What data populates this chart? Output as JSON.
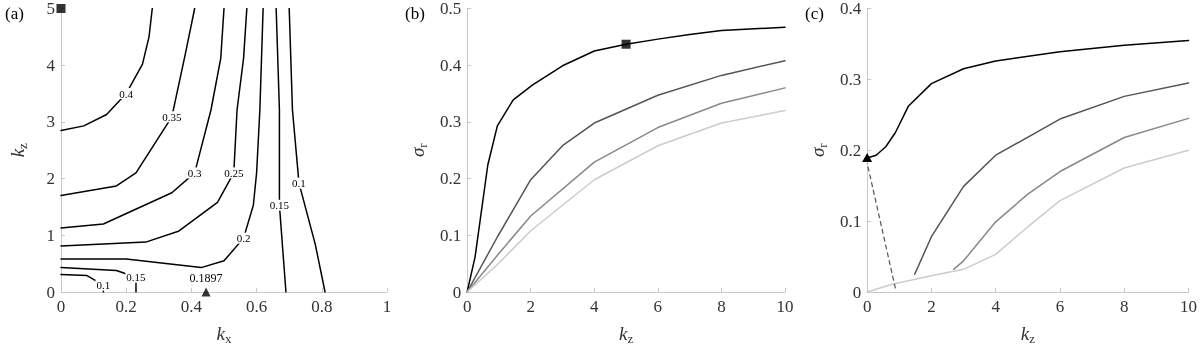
{
  "chart_data": [
    {
      "type": "line",
      "title": "(a)",
      "xlabel": "k$_{x}$",
      "ylabel": "k$_{z}$",
      "xlim": [
        0,
        1
      ],
      "ylim": [
        0,
        5
      ],
      "xticks": [
        0,
        0.2,
        0.4,
        0.6,
        0.8,
        1
      ],
      "yticks": [
        0,
        1,
        2,
        3,
        4,
        5
      ],
      "annotations": [
        {
          "text": "0.1897",
          "x": 0.445,
          "y": 0
        }
      ],
      "series": [
        {
          "name": "0.4",
          "color": "#000000",
          "x": [
            0,
            0.07,
            0.14,
            0.2,
            0.25,
            0.27,
            0.28
          ],
          "values": [
            2.85,
            2.93,
            3.13,
            3.5,
            4.02,
            4.5,
            5
          ]
        },
        {
          "name": "0.35",
          "color": "#000000",
          "x": [
            0,
            0.17,
            0.23,
            0.34,
            0.38,
            0.41
          ],
          "values": [
            1.7,
            1.87,
            2.1,
            3.09,
            4.16,
            5
          ]
        },
        {
          "name": "0.3",
          "color": "#000000",
          "x": [
            0,
            0.13,
            0.34,
            0.41,
            0.46,
            0.49,
            0.5
          ],
          "values": [
            1.13,
            1.2,
            1.75,
            2.1,
            3.21,
            4.12,
            5
          ]
        },
        {
          "name": "0.25",
          "color": "#000000",
          "x": [
            0,
            0.26,
            0.36,
            0.48,
            0.53,
            0.54,
            0.56,
            0.57
          ],
          "values": [
            0.81,
            0.88,
            1.07,
            1.58,
            2.1,
            3.21,
            4.12,
            5
          ]
        },
        {
          "name": "0.2",
          "color": "#000000",
          "x": [
            0,
            0.2,
            0.43,
            0.5,
            0.56,
            0.59,
            0.6,
            0.61,
            0.62
          ],
          "values": [
            0.58,
            0.58,
            0.43,
            0.55,
            0.95,
            1.53,
            2.1,
            3.21,
            5
          ]
        },
        {
          "name": "0.15",
          "color": "#000000",
          "x": [
            0,
            0.17,
            0.23,
            0.23
          ],
          "values": [
            0.43,
            0.38,
            0.26,
            0
          ]
        },
        {
          "name": "0.15",
          "color": "#000000",
          "x": [
            0.66,
            0.67,
            0.67,
            0.69
          ],
          "values": [
            5,
            3.21,
            1.53,
            0
          ]
        },
        {
          "name": "0.1",
          "color": "#000000",
          "x": [
            0,
            0.08,
            0.13,
            0.13
          ],
          "values": [
            0.31,
            0.29,
            0.12,
            0
          ]
        },
        {
          "name": "0.1",
          "color": "#000000",
          "x": [
            0.7,
            0.71,
            0.73,
            0.78,
            0.81
          ],
          "values": [
            5,
            3.21,
            1.92,
            0.84,
            0
          ]
        },
        {
          "type": "scatter",
          "marker": "square",
          "color": "#000000",
          "x": [
            0
          ],
          "values": [
            5
          ]
        },
        {
          "type": "scatter",
          "marker": "triangle",
          "color": "#000000",
          "x": [
            0.445
          ],
          "values": [
            0
          ]
        }
      ]
    },
    {
      "type": "line",
      "title": "(b)",
      "xlabel": "k$_{z}$",
      "ylabel": "σ$_{r}$",
      "xlim": [
        0,
        10
      ],
      "ylim": [
        0,
        0.5
      ],
      "xticks": [
        0,
        2,
        4,
        6,
        8,
        10
      ],
      "yticks": [
        0,
        0.1,
        0.2,
        0.3,
        0.4,
        0.5
      ],
      "series": [
        {
          "color": "#000000",
          "x": [
            0,
            0.25,
            0.45,
            0.65,
            0.95,
            1.45,
            2.05,
            3,
            4,
            5,
            6,
            7,
            8,
            10
          ],
          "values": [
            0,
            0.062,
            0.143,
            0.224,
            0.293,
            0.339,
            0.365,
            0.399,
            0.425,
            0.437,
            0.446,
            0.454,
            0.461,
            0.467
          ]
        },
        {
          "color": "#555555",
          "x": [
            0,
            0.95,
            2,
            3,
            4,
            6,
            8,
            10
          ],
          "values": [
            0,
            0.097,
            0.198,
            0.258,
            0.298,
            0.347,
            0.382,
            0.408
          ]
        },
        {
          "color": "#888888",
          "x": [
            0,
            1,
            2,
            4,
            6,
            8,
            10
          ],
          "values": [
            0,
            0.068,
            0.134,
            0.229,
            0.29,
            0.333,
            0.36
          ]
        },
        {
          "color": "#cccccc",
          "x": [
            0,
            1,
            2,
            4,
            6,
            8,
            10
          ],
          "values": [
            0,
            0.051,
            0.108,
            0.198,
            0.258,
            0.298,
            0.32
          ]
        },
        {
          "type": "scatter",
          "marker": "square",
          "color": "#000000",
          "x": [
            5
          ],
          "values": [
            0.437
          ]
        }
      ]
    },
    {
      "type": "line",
      "title": "(c)",
      "xlabel": "k$_{z}$",
      "ylabel": "σ$_{r}$",
      "xlim": [
        0,
        10
      ],
      "ylim": [
        0,
        0.4
      ],
      "xticks": [
        0,
        2,
        4,
        6,
        8,
        10
      ],
      "yticks": [
        0,
        0.1,
        0.2,
        0.3,
        0.4
      ],
      "series": [
        {
          "color": "#000000",
          "x": [
            0,
            0.28,
            0.58,
            0.88,
            1.28,
            2,
            3,
            4,
            6,
            8,
            10
          ],
          "values": [
            0.189,
            0.193,
            0.205,
            0.225,
            0.262,
            0.294,
            0.315,
            0.326,
            0.339,
            0.348,
            0.355
          ]
        },
        {
          "color": "#555555",
          "x": [
            1.48,
            2,
            3,
            4,
            6,
            8,
            10
          ],
          "values": [
            0.025,
            0.078,
            0.149,
            0.193,
            0.244,
            0.276,
            0.295
          ]
        },
        {
          "color": "#888888",
          "x": [
            2.69,
            3,
            4,
            5,
            6,
            8,
            10
          ],
          "values": [
            0.032,
            0.044,
            0.099,
            0.138,
            0.17,
            0.218,
            0.245
          ]
        },
        {
          "color": "#cccccc",
          "x": [
            0,
            0.78,
            1.28,
            2,
            3,
            4,
            5,
            6,
            8,
            10
          ],
          "values": [
            0,
            0.011,
            0.016,
            0.023,
            0.032,
            0.053,
            0.092,
            0.129,
            0.175,
            0.2
          ]
        }
      ]
    }
  ]
}
